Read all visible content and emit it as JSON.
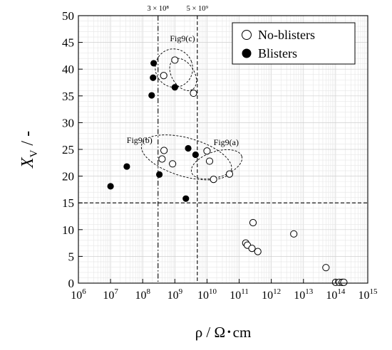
{
  "chart_data": {
    "type": "scatter",
    "xscale": "log",
    "x_exponent_range": [
      6,
      15
    ],
    "x_base_label": "10",
    "ylim": [
      0,
      50
    ],
    "y_ticks": [
      "0",
      "5",
      "10",
      "15",
      "20",
      "25",
      "30",
      "35",
      "40",
      "45",
      "50"
    ],
    "x_tick_exponents": [
      "6",
      "7",
      "8",
      "9",
      "10",
      "11",
      "12",
      "13",
      "14",
      "15"
    ],
    "xlabel": "ρ / Ω･cm",
    "ylabel_main": "X",
    "ylabel_sub": "V",
    "ylabel_suffix": " / -",
    "grid": true,
    "legend_position": "top-right",
    "series": [
      {
        "name": "No-blisters",
        "marker": "open-circle",
        "points": [
          {
            "x": 450000000,
            "y": 38.8
          },
          {
            "x": 1000000000,
            "y": 41.7
          },
          {
            "x": 3800000000,
            "y": 35.5
          },
          {
            "x": 400000000,
            "y": 23.2
          },
          {
            "x": 460000000,
            "y": 24.8
          },
          {
            "x": 850000000,
            "y": 22.3
          },
          {
            "x": 10000000000,
            "y": 24.7
          },
          {
            "x": 12000000000,
            "y": 22.8
          },
          {
            "x": 16000000000,
            "y": 19.4
          },
          {
            "x": 50000000000,
            "y": 20.4
          },
          {
            "x": 270000000000,
            "y": 11.3
          },
          {
            "x": 160000000000,
            "y": 7.5
          },
          {
            "x": 180000000000,
            "y": 7.1
          },
          {
            "x": 250000000000,
            "y": 6.5
          },
          {
            "x": 380000000000,
            "y": 5.9
          },
          {
            "x": 5000000000000,
            "y": 9.2
          },
          {
            "x": 50000000000000,
            "y": 2.9
          },
          {
            "x": 100000000000000,
            "y": 0.15
          },
          {
            "x": 130000000000000,
            "y": 0.15
          },
          {
            "x": 160000000000000,
            "y": 0.15
          },
          {
            "x": 180000000000000,
            "y": 0.15
          }
        ]
      },
      {
        "name": "Blisters",
        "marker": "filled-circle",
        "points": [
          {
            "x": 10000000,
            "y": 18.1
          },
          {
            "x": 32000000,
            "y": 21.8
          },
          {
            "x": 330000000,
            "y": 20.3
          },
          {
            "x": 220000000,
            "y": 41.1
          },
          {
            "x": 210000000,
            "y": 38.4
          },
          {
            "x": 190000000,
            "y": 35.1
          },
          {
            "x": 1000000000,
            "y": 36.6
          },
          {
            "x": 2600000000,
            "y": 25.2
          },
          {
            "x": 4400000000,
            "y": 24.0
          },
          {
            "x": 2200000000,
            "y": 15.8
          }
        ]
      }
    ],
    "reference_lines": [
      {
        "label": "3 × 10⁸",
        "axis": "x",
        "value": 300000000,
        "style": "dash-dot"
      },
      {
        "label": "5 × 10⁹",
        "axis": "x",
        "value": 5000000000,
        "style": "dashed"
      },
      {
        "label": "",
        "axis": "y",
        "value": 15,
        "style": "dashed"
      }
    ],
    "annotations": [
      {
        "text": "Fig9(c)",
        "x": 700000000,
        "y": 45.2,
        "anchor": "start"
      },
      {
        "text": "Fig9(b)",
        "x": 200000000,
        "y": 26.2,
        "anchor": "end"
      },
      {
        "text": "Fig9(a)",
        "x": 16000000000,
        "y": 25.8,
        "anchor": "start"
      }
    ],
    "groupings": [
      {
        "name": "Fig9(c)",
        "x_center": 940000000,
        "y_center": 40.2,
        "rx_decades": 0.58,
        "ry_units": 3.6,
        "rotate_deg": -22
      },
      {
        "name": "Fig9(c)-tail",
        "x_center": 1800000000,
        "y_center": 39.0,
        "rx_decades": 0.55,
        "ry_units": 2.1,
        "rotate_deg": 58
      },
      {
        "name": "Fig9(b)",
        "x_center": 2300000000,
        "y_center": 23.5,
        "rx_decades": 1.45,
        "ry_units": 3.6,
        "rotate_deg": 16
      },
      {
        "name": "Fig9(a)",
        "x_center": 20000000000,
        "y_center": 22.2,
        "rx_decades": 0.82,
        "ry_units": 2.4,
        "rotate_deg": -18
      }
    ]
  }
}
